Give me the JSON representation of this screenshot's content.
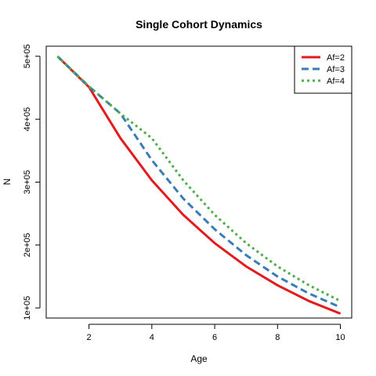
{
  "chart_data": {
    "type": "line",
    "title": "Single Cohort Dynamics",
    "xlabel": "Age",
    "ylabel": "N",
    "xlim": [
      0.64,
      10.36
    ],
    "ylim": [
      84000,
      516000
    ],
    "x_ticks": [
      2,
      4,
      6,
      8,
      10
    ],
    "x_tick_labels": [
      "2",
      "4",
      "6",
      "8",
      "10"
    ],
    "y_ticks": [
      100000,
      200000,
      300000,
      400000,
      500000
    ],
    "y_tick_labels": [
      "1e+05",
      "2e+05",
      "3e+05",
      "4e+05",
      "5e+05"
    ],
    "grid": false,
    "legend_position": "top-right",
    "x": [
      1,
      2,
      3,
      4,
      5,
      6,
      7,
      8,
      9,
      10
    ],
    "series": [
      {
        "name": "Af=2",
        "color": "#e41a1c",
        "line_style": "solid",
        "values": [
          500000,
          451000,
          370000,
          303000,
          248000,
          203000,
          166000,
          136000,
          111000,
          91000
        ]
      },
      {
        "name": "Af=3",
        "color": "#377eb8",
        "line_style": "dashed",
        "values": [
          500000,
          452000,
          409000,
          335000,
          274000,
          225000,
          184000,
          150000,
          123000,
          101000
        ]
      },
      {
        "name": "Af=4",
        "color": "#4daf4a",
        "line_style": "dotted",
        "values": [
          500000,
          452000,
          409000,
          370000,
          303000,
          248000,
          203000,
          166000,
          136000,
          111000
        ]
      }
    ]
  }
}
